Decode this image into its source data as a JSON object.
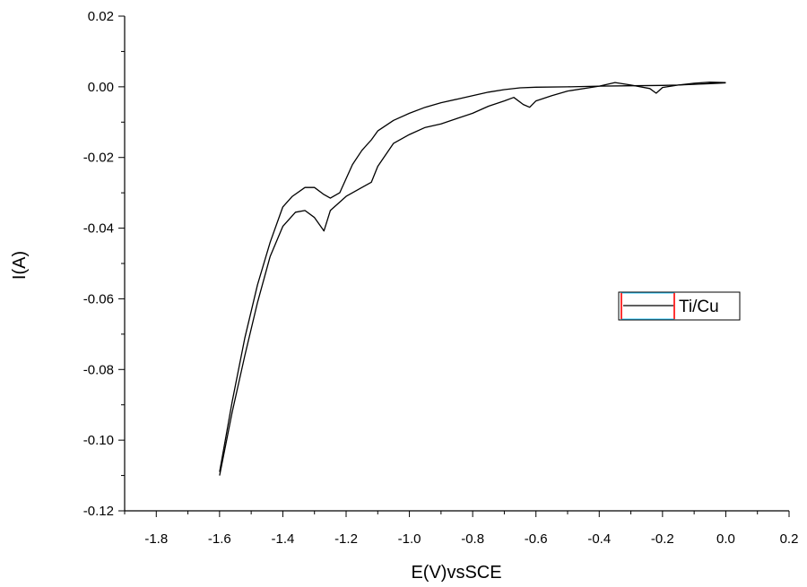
{
  "chart_data": {
    "type": "line",
    "xlabel": "E(V)vsSCE",
    "ylabel": "I(A)",
    "xlim": [
      -1.9,
      0.2
    ],
    "ylim": [
      -0.12,
      0.02
    ],
    "x_ticks": [
      -1.8,
      -1.6,
      -1.4,
      -1.2,
      -1.0,
      -0.8,
      -0.6,
      -0.4,
      -0.2,
      0.0,
      0.2
    ],
    "x_tick_labels": [
      "-1.8",
      "-1.6",
      "-1.4",
      "-1.2",
      "-1.0",
      "-0.8",
      "-0.6",
      "-0.4",
      "-0.2",
      "0.0",
      "0.2"
    ],
    "y_ticks": [
      -0.12,
      -0.1,
      -0.08,
      -0.06,
      -0.04,
      -0.02,
      0.0,
      0.02
    ],
    "y_tick_labels": [
      "-0.12",
      "-0.10",
      "-0.08",
      "-0.06",
      "-0.04",
      "-0.02",
      "0.00",
      "0.02"
    ],
    "grid": false,
    "legend_position": "right",
    "series": [
      {
        "name": "Ti/Cu",
        "color": "#000000",
        "x": [
          0.0,
          -0.05,
          -0.1,
          -0.15,
          -0.2,
          -0.22,
          -0.24,
          -0.3,
          -0.35,
          -0.4,
          -0.5,
          -0.55,
          -0.6,
          -0.62,
          -0.64,
          -0.67,
          -0.7,
          -0.75,
          -0.8,
          -0.85,
          -0.9,
          -0.95,
          -1.0,
          -1.05,
          -1.1,
          -1.12,
          -1.15,
          -1.2,
          -1.25,
          -1.27,
          -1.3,
          -1.33,
          -1.36,
          -1.4,
          -1.44,
          -1.48,
          -1.52,
          -1.56,
          -1.6
        ],
        "y": [
          0.0012,
          0.0013,
          0.001,
          0.0005,
          -0.0002,
          -0.0018,
          -0.0005,
          0.0005,
          0.0012,
          0.0002,
          -0.0012,
          -0.0025,
          -0.004,
          -0.0058,
          -0.005,
          -0.003,
          -0.004,
          -0.0055,
          -0.0075,
          -0.009,
          -0.0105,
          -0.0115,
          -0.0135,
          -0.016,
          -0.0225,
          -0.027,
          -0.0285,
          -0.031,
          -0.035,
          -0.0408,
          -0.037,
          -0.035,
          -0.0355,
          -0.0395,
          -0.048,
          -0.061,
          -0.076,
          -0.092,
          -0.11
        ]
      },
      {
        "name": "",
        "color": "#000000",
        "x": [
          -1.6,
          -1.56,
          -1.52,
          -1.48,
          -1.44,
          -1.4,
          -1.37,
          -1.33,
          -1.3,
          -1.27,
          -1.25,
          -1.22,
          -1.18,
          -1.15,
          -1.12,
          -1.1,
          -1.05,
          -1.0,
          -0.95,
          -0.9,
          -0.85,
          -0.8,
          -0.75,
          -0.7,
          -0.65,
          -0.6,
          -0.5,
          -0.4,
          -0.3,
          -0.2,
          -0.15,
          -0.1,
          -0.05,
          0.0
        ],
        "y": [
          -0.109,
          -0.089,
          -0.071,
          -0.056,
          -0.044,
          -0.034,
          -0.031,
          -0.0285,
          -0.0285,
          -0.0305,
          -0.0315,
          -0.03,
          -0.022,
          -0.018,
          -0.015,
          -0.0125,
          -0.0095,
          -0.0075,
          -0.0058,
          -0.0045,
          -0.0035,
          -0.0025,
          -0.0015,
          -0.0008,
          -0.0003,
          -0.0001,
          0.0,
          0.0002,
          0.0003,
          0.0004,
          0.0005,
          0.0007,
          0.0009,
          0.0011
        ]
      }
    ]
  }
}
